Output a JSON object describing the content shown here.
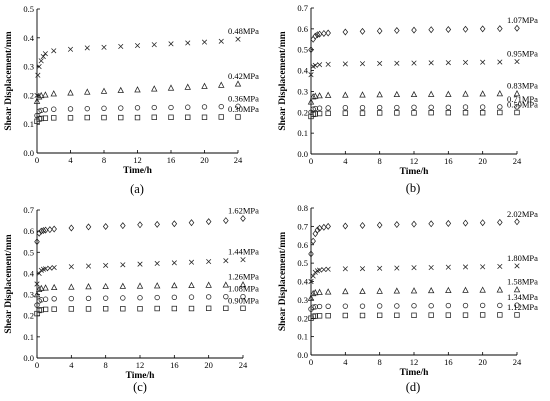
{
  "chart_data": [
    {
      "type": "scatter",
      "panel_label": "(a)",
      "xlabel": "Time/h",
      "ylabel": "Shear Displacement/mm",
      "xlim": [
        0,
        24
      ],
      "ylim": [
        0,
        0.5
      ],
      "xticks": [
        "0",
        "4",
        "8",
        "12",
        "16",
        "20",
        "24"
      ],
      "yticks": [
        "0.0",
        "0.1",
        "0.2",
        "0.3",
        "0.4",
        "0.5"
      ],
      "series": [
        {
          "name": "0.48MPa",
          "marker": "x",
          "x": [
            0,
            0.1,
            0.25,
            0.5,
            0.75,
            1,
            2,
            4,
            6,
            8,
            10,
            12,
            14,
            16,
            18,
            20,
            22,
            24
          ],
          "y": [
            0.2,
            0.27,
            0.3,
            0.32,
            0.335,
            0.345,
            0.355,
            0.36,
            0.365,
            0.367,
            0.37,
            0.373,
            0.376,
            0.379,
            0.382,
            0.385,
            0.388,
            0.395
          ]
        },
        {
          "name": "0.42MPa",
          "marker": "triangle",
          "x": [
            0,
            0.25,
            0.5,
            1,
            2,
            4,
            6,
            8,
            10,
            12,
            14,
            16,
            18,
            20,
            22,
            24
          ],
          "y": [
            0.18,
            0.195,
            0.2,
            0.202,
            0.206,
            0.209,
            0.212,
            0.215,
            0.218,
            0.22,
            0.223,
            0.226,
            0.229,
            0.232,
            0.236,
            0.24
          ]
        },
        {
          "name": "0.36MPa",
          "marker": "circle",
          "x": [
            0,
            0.25,
            0.5,
            1,
            2,
            4,
            6,
            8,
            10,
            12,
            14,
            16,
            18,
            20,
            22,
            24
          ],
          "y": [
            0.13,
            0.145,
            0.148,
            0.15,
            0.152,
            0.153,
            0.154,
            0.155,
            0.156,
            0.157,
            0.158,
            0.158,
            0.159,
            0.16,
            0.161,
            0.162
          ]
        },
        {
          "name": "0.30MPa",
          "marker": "square",
          "x": [
            0,
            0.25,
            0.5,
            1,
            2,
            4,
            6,
            8,
            10,
            12,
            14,
            16,
            18,
            20,
            22,
            24
          ],
          "y": [
            0.11,
            0.118,
            0.12,
            0.121,
            0.122,
            0.122,
            0.123,
            0.123,
            0.123,
            0.123,
            0.124,
            0.124,
            0.124,
            0.124,
            0.125,
            0.125
          ]
        }
      ]
    },
    {
      "type": "scatter",
      "panel_label": "(b)",
      "xlabel": "Time/h",
      "ylabel": "Shear Displacement/mm",
      "xlim": [
        0,
        24
      ],
      "ylim": [
        0,
        0.7
      ],
      "xticks": [
        "0",
        "4",
        "8",
        "12",
        "16",
        "20",
        "24"
      ],
      "yticks": [
        "0.0",
        "0.1",
        "0.2",
        "0.3",
        "0.4",
        "0.5",
        "0.6",
        "0.7"
      ],
      "series": [
        {
          "name": "1.07MPa",
          "marker": "diamond",
          "x": [
            0,
            0.25,
            0.5,
            0.75,
            1,
            1.5,
            2,
            4,
            6,
            8,
            10,
            12,
            14,
            16,
            18,
            20,
            22,
            24
          ],
          "y": [
            0.5,
            0.55,
            0.565,
            0.572,
            0.575,
            0.578,
            0.58,
            0.585,
            0.588,
            0.59,
            0.592,
            0.594,
            0.596,
            0.597,
            0.598,
            0.6,
            0.601,
            0.603
          ]
        },
        {
          "name": "0.95MPa",
          "marker": "x",
          "x": [
            0,
            0.25,
            0.5,
            1,
            2,
            4,
            6,
            8,
            10,
            12,
            14,
            16,
            18,
            20,
            22,
            24
          ],
          "y": [
            0.38,
            0.42,
            0.425,
            0.428,
            0.43,
            0.432,
            0.433,
            0.434,
            0.435,
            0.436,
            0.437,
            0.438,
            0.439,
            0.44,
            0.441,
            0.443
          ]
        },
        {
          "name": "0.83MPa",
          "marker": "triangle",
          "x": [
            0,
            0.25,
            0.5,
            1,
            2,
            4,
            6,
            8,
            10,
            12,
            14,
            16,
            18,
            20,
            22,
            24
          ],
          "y": [
            0.25,
            0.275,
            0.278,
            0.28,
            0.282,
            0.283,
            0.284,
            0.285,
            0.286,
            0.286,
            0.287,
            0.287,
            0.288,
            0.289,
            0.29,
            0.29
          ]
        },
        {
          "name": "0.71MPa",
          "marker": "circle",
          "x": [
            0,
            0.25,
            0.5,
            1,
            2,
            4,
            6,
            8,
            10,
            12,
            14,
            16,
            18,
            20,
            22,
            24
          ],
          "y": [
            0.2,
            0.215,
            0.218,
            0.22,
            0.221,
            0.222,
            0.222,
            0.223,
            0.223,
            0.224,
            0.224,
            0.224,
            0.225,
            0.225,
            0.226,
            0.226
          ]
        },
        {
          "name": "0.59MPa",
          "marker": "square",
          "x": [
            0,
            0.25,
            0.5,
            1,
            2,
            4,
            6,
            8,
            10,
            12,
            14,
            16,
            18,
            20,
            22,
            24
          ],
          "y": [
            0.18,
            0.19,
            0.192,
            0.194,
            0.195,
            0.196,
            0.196,
            0.197,
            0.197,
            0.197,
            0.198,
            0.198,
            0.198,
            0.198,
            0.199,
            0.199
          ]
        }
      ]
    },
    {
      "type": "scatter",
      "panel_label": "(c)",
      "xlabel": "Time/h",
      "ylabel": "Shear Displacement/mm",
      "xlim": [
        0,
        24
      ],
      "ylim": [
        0,
        0.7
      ],
      "xticks": [
        "0",
        "4",
        "8",
        "12",
        "16",
        "20",
        "24"
      ],
      "yticks": [
        "0.0",
        "0.1",
        "0.2",
        "0.3",
        "0.4",
        "0.5",
        "0.6",
        "0.7"
      ],
      "series": [
        {
          "name": "1.62MPa",
          "marker": "diamond",
          "x": [
            0,
            0.25,
            0.5,
            0.75,
            1,
            1.5,
            2,
            4,
            6,
            8,
            10,
            12,
            14,
            16,
            18,
            20,
            22,
            24
          ],
          "y": [
            0.55,
            0.59,
            0.6,
            0.603,
            0.605,
            0.607,
            0.61,
            0.615,
            0.62,
            0.622,
            0.626,
            0.63,
            0.632,
            0.635,
            0.64,
            0.645,
            0.65,
            0.66
          ]
        },
        {
          "name": "1.44MPa",
          "marker": "x",
          "x": [
            0,
            0.25,
            0.5,
            0.75,
            1,
            1.5,
            2,
            4,
            6,
            8,
            10,
            12,
            14,
            16,
            18,
            20,
            22,
            24
          ],
          "y": [
            0.35,
            0.4,
            0.415,
            0.42,
            0.422,
            0.425,
            0.428,
            0.432,
            0.435,
            0.438,
            0.441,
            0.444,
            0.447,
            0.45,
            0.453,
            0.456,
            0.46,
            0.465
          ]
        },
        {
          "name": "1.26MPa",
          "marker": "triangle",
          "x": [
            0,
            0.25,
            0.5,
            1,
            2,
            4,
            6,
            8,
            10,
            12,
            14,
            16,
            18,
            20,
            22,
            24
          ],
          "y": [
            0.3,
            0.325,
            0.33,
            0.332,
            0.334,
            0.336,
            0.338,
            0.339,
            0.34,
            0.341,
            0.342,
            0.343,
            0.344,
            0.345,
            0.346,
            0.347
          ]
        },
        {
          "name": "1.08MPa",
          "marker": "circle",
          "x": [
            0,
            0.25,
            0.5,
            1,
            2,
            4,
            6,
            8,
            10,
            12,
            14,
            16,
            18,
            20,
            22,
            24
          ],
          "y": [
            0.25,
            0.27,
            0.275,
            0.278,
            0.28,
            0.281,
            0.282,
            0.283,
            0.284,
            0.285,
            0.286,
            0.287,
            0.288,
            0.289,
            0.29,
            0.29
          ]
        },
        {
          "name": "0.90MPa",
          "marker": "square",
          "x": [
            0,
            0.25,
            0.5,
            1,
            2,
            4,
            6,
            8,
            10,
            12,
            14,
            16,
            18,
            20,
            22,
            24
          ],
          "y": [
            0.21,
            0.225,
            0.228,
            0.23,
            0.231,
            0.232,
            0.232,
            0.233,
            0.233,
            0.233,
            0.234,
            0.234,
            0.234,
            0.235,
            0.235,
            0.235
          ]
        }
      ]
    },
    {
      "type": "scatter",
      "panel_label": "(d)",
      "xlabel": "Time/h",
      "ylabel": "Shear Displacement/mm",
      "xlim": [
        0,
        24
      ],
      "ylim": [
        0,
        0.8
      ],
      "xticks": [
        "0",
        "4",
        "8",
        "12",
        "16",
        "20",
        "24"
      ],
      "yticks": [
        "0.0",
        "0.1",
        "0.2",
        "0.3",
        "0.4",
        "0.5",
        "0.6",
        "0.7",
        "0.8"
      ],
      "series": [
        {
          "name": "2.02MPa",
          "marker": "diamond",
          "x": [
            0,
            0.25,
            0.5,
            0.75,
            1,
            1.5,
            2,
            4,
            6,
            8,
            10,
            12,
            14,
            16,
            18,
            20,
            22,
            24
          ],
          "y": [
            0.55,
            0.62,
            0.66,
            0.68,
            0.69,
            0.695,
            0.7,
            0.702,
            0.705,
            0.707,
            0.71,
            0.712,
            0.714,
            0.716,
            0.718,
            0.72,
            0.722,
            0.725
          ]
        },
        {
          "name": "1.80MPa",
          "marker": "x",
          "x": [
            0,
            0.25,
            0.5,
            0.75,
            1,
            1.5,
            2,
            4,
            6,
            8,
            10,
            12,
            14,
            16,
            18,
            20,
            22,
            24
          ],
          "y": [
            0.4,
            0.43,
            0.45,
            0.458,
            0.462,
            0.465,
            0.467,
            0.469,
            0.47,
            0.472,
            0.473,
            0.475,
            0.476,
            0.478,
            0.479,
            0.48,
            0.482,
            0.485
          ]
        },
        {
          "name": "1.58MPa",
          "marker": "triangle",
          "x": [
            0,
            0.25,
            0.5,
            1,
            2,
            4,
            6,
            8,
            10,
            12,
            14,
            16,
            18,
            20,
            22,
            24
          ],
          "y": [
            0.31,
            0.335,
            0.34,
            0.342,
            0.344,
            0.346,
            0.347,
            0.348,
            0.349,
            0.35,
            0.351,
            0.352,
            0.353,
            0.354,
            0.355,
            0.356
          ]
        },
        {
          "name": "1.34MPa",
          "marker": "circle",
          "x": [
            0,
            0.25,
            0.5,
            1,
            2,
            4,
            6,
            8,
            10,
            12,
            14,
            16,
            18,
            20,
            22,
            24
          ],
          "y": [
            0.25,
            0.26,
            0.262,
            0.264,
            0.265,
            0.266,
            0.266,
            0.267,
            0.267,
            0.268,
            0.268,
            0.269,
            0.269,
            0.27,
            0.27,
            0.271
          ]
        },
        {
          "name": "1.12MPa",
          "marker": "square",
          "x": [
            0,
            0.25,
            0.5,
            1,
            2,
            4,
            6,
            8,
            10,
            12,
            14,
            16,
            18,
            20,
            22,
            24
          ],
          "y": [
            0.2,
            0.21,
            0.212,
            0.213,
            0.214,
            0.215,
            0.215,
            0.216,
            0.216,
            0.216,
            0.217,
            0.217,
            0.217,
            0.218,
            0.218,
            0.218
          ]
        }
      ]
    }
  ]
}
